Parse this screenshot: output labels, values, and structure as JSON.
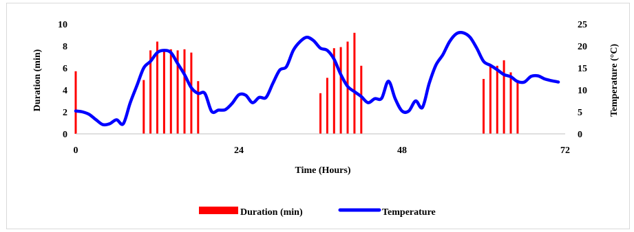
{
  "chart_data": {
    "type": "bar+line",
    "xlabel": "Time (Hours)",
    "ylabel_left": "Duration (min)",
    "ylabel_right": "Temperature (°C)",
    "xlim": [
      0,
      72
    ],
    "x_ticks": [
      0,
      24,
      48,
      72
    ],
    "ylim_left": [
      0,
      10
    ],
    "y_ticks_left": [
      0,
      2,
      4,
      6,
      8,
      10
    ],
    "ylim_right": [
      0,
      25
    ],
    "y_ticks_right": [
      0,
      5,
      10,
      15,
      20,
      25
    ],
    "grid": false,
    "legend_position": "bottom",
    "colors": {
      "duration": "#ff0000",
      "temperature": "#0000ff"
    },
    "series": [
      {
        "name": "Duration (min)",
        "type": "bar",
        "axis": "left",
        "x": [
          0,
          10,
          11,
          12,
          13,
          14,
          15,
          16,
          17,
          18,
          36,
          37,
          38,
          39,
          40,
          41,
          42,
          60,
          61,
          62,
          63,
          64,
          65
        ],
        "values": [
          5.7,
          4.9,
          7.6,
          8.4,
          7.7,
          7.7,
          7.6,
          7.7,
          7.4,
          4.8,
          3.7,
          5.1,
          7.8,
          7.9,
          8.4,
          9.2,
          6.2,
          5.0,
          6.2,
          6.2,
          6.7,
          5.6,
          4.9
        ]
      },
      {
        "name": "Temperature",
        "type": "line",
        "axis": "right",
        "x": [
          0,
          1,
          2,
          3,
          4,
          5,
          6,
          7,
          8,
          9,
          10,
          11,
          12,
          13,
          14,
          15,
          16,
          17,
          18,
          19,
          20,
          21,
          22,
          23,
          24,
          25,
          26,
          27,
          28,
          29,
          30,
          31,
          32,
          33,
          34,
          35,
          36,
          37,
          38,
          39,
          40,
          41,
          42,
          43,
          44,
          45,
          46,
          47,
          48,
          49,
          50,
          51,
          52,
          53,
          54,
          55,
          56,
          57,
          58,
          59,
          60,
          61,
          62,
          63,
          64,
          65,
          66,
          67,
          68,
          69,
          70,
          71
        ],
        "values": [
          5.2,
          5.0,
          4.4,
          3.2,
          2.1,
          2.3,
          3.2,
          2.3,
          7.0,
          11.0,
          15.0,
          16.5,
          18.5,
          19.0,
          18.5,
          16.0,
          13.5,
          10.5,
          9.2,
          9.2,
          5.1,
          5.4,
          5.5,
          6.9,
          8.9,
          8.8,
          7.1,
          8.3,
          8.3,
          11.5,
          14.5,
          15.3,
          19.0,
          21.0,
          22.0,
          21.2,
          19.5,
          19.0,
          17.0,
          13.5,
          10.8,
          9.6,
          8.5,
          7.1,
          8.0,
          8.1,
          12.0,
          8.0,
          5.2,
          5.2,
          7.5,
          6.0,
          11.5,
          15.7,
          18.0,
          21.0,
          22.8,
          23.0,
          22.0,
          19.5,
          16.5,
          15.6,
          14.6,
          13.5,
          13.0,
          11.9,
          11.8,
          13.1,
          13.2,
          12.5,
          12.1,
          11.8
        ]
      }
    ]
  }
}
